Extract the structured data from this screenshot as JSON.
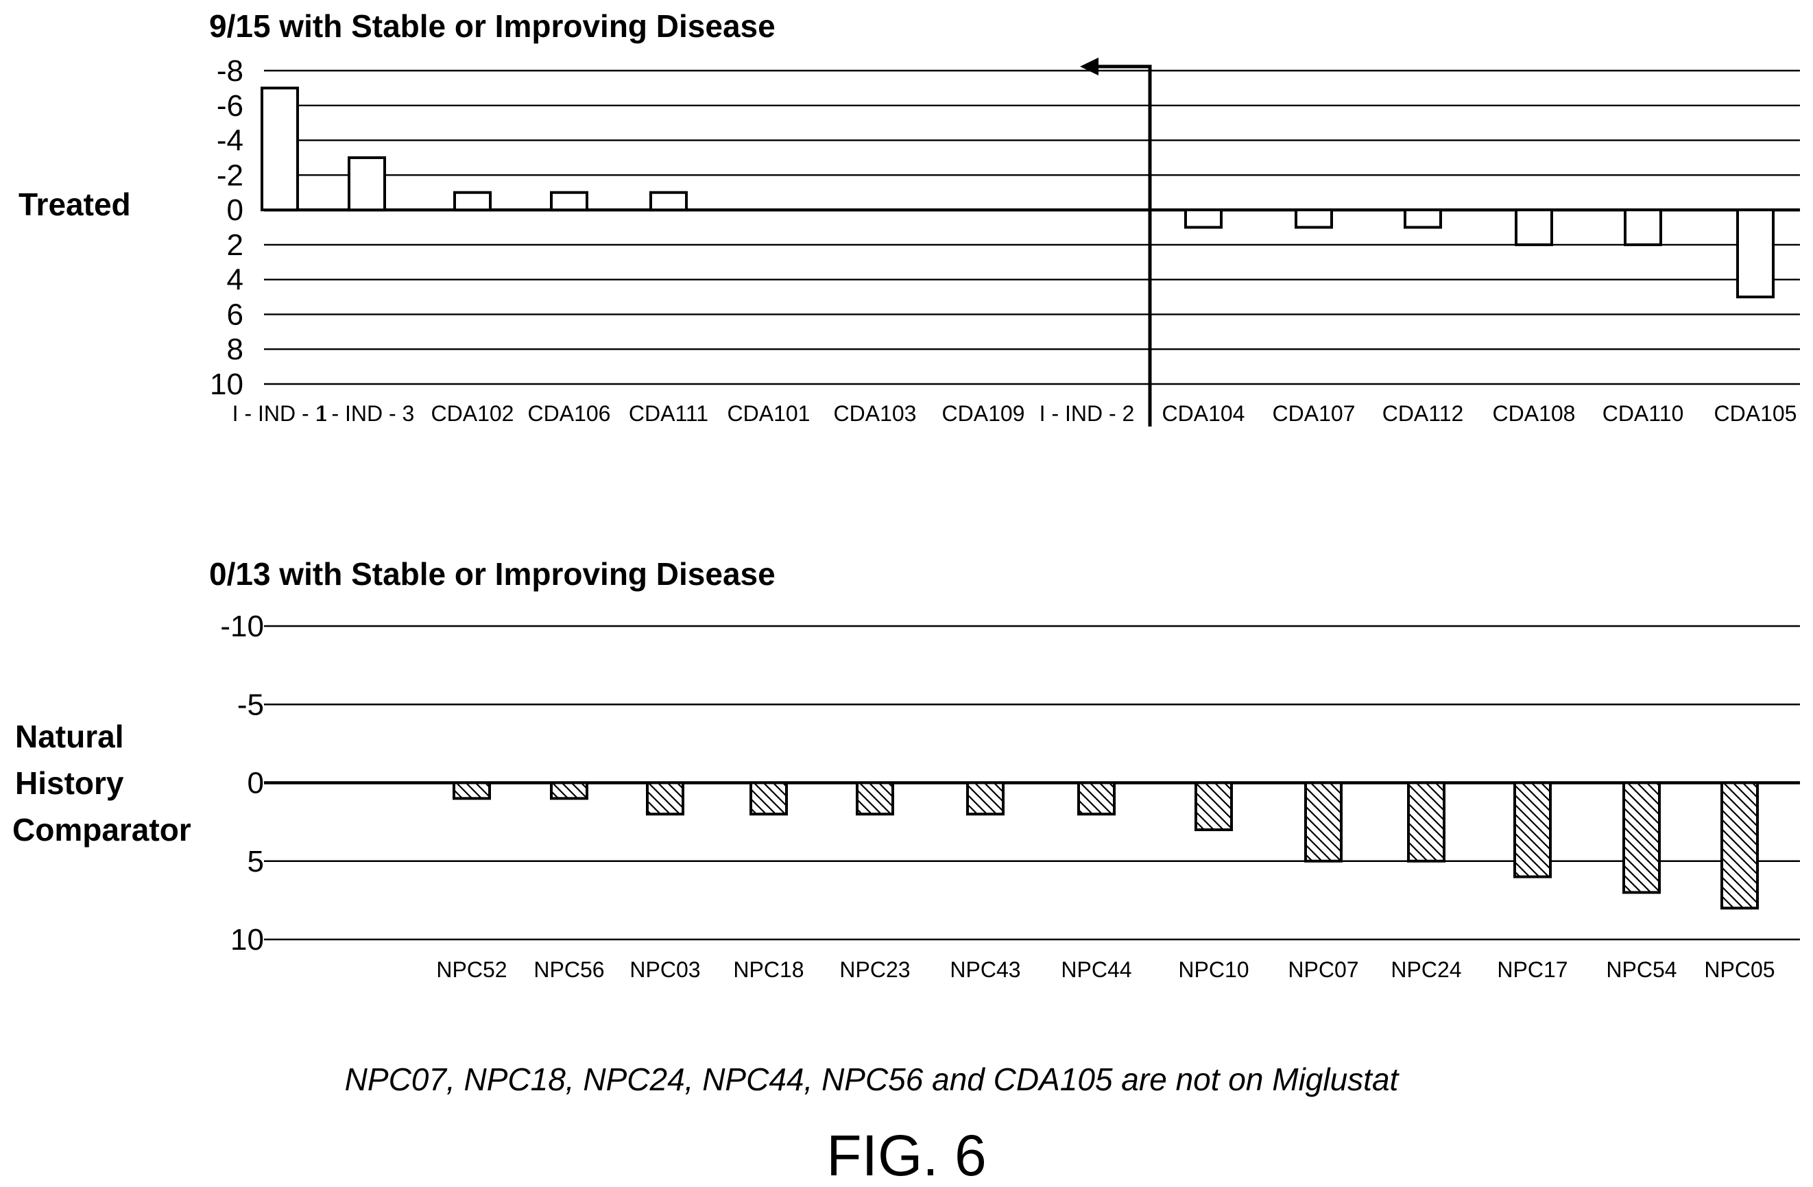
{
  "chart_data": [
    {
      "type": "bar",
      "title": "9/15 with Stable or Improving Disease",
      "side_label": "Treated",
      "categories": [
        "I - IND - 1",
        "I - IND - 3",
        "CDA102",
        "CDA106",
        "CDA111",
        "CDA101",
        "CDA103",
        "CDA109",
        "I - IND - 2",
        "CDA104",
        "CDA107",
        "CDA112",
        "CDA108",
        "CDA110",
        "CDA105"
      ],
      "values": [
        -7,
        -3,
        -1,
        -1,
        -1,
        0,
        0,
        0,
        0,
        1,
        1,
        1,
        2,
        2,
        5
      ],
      "yticks": [
        -8,
        -6,
        -4,
        -2,
        0,
        2,
        4,
        6,
        8,
        10
      ],
      "ylim": [
        -8,
        10
      ],
      "y_inverted": true,
      "grid": true,
      "bar_fill": "#ffffff",
      "annotation": "arrow"
    },
    {
      "type": "bar",
      "title": "0/13 with Stable or Improving Disease",
      "side_label": [
        "Natural",
        "History",
        "Comparator"
      ],
      "categories": [
        "NPC52",
        "NPC56",
        "NPC03",
        "NPC18",
        "NPC23",
        "NPC43",
        "NPC44",
        "NPC10",
        "NPC07",
        "NPC24",
        "NPC17",
        "NPC54",
        "NPC05"
      ],
      "values": [
        1,
        1,
        2,
        2,
        2,
        2,
        2,
        3,
        5,
        5,
        6,
        7,
        8
      ],
      "yticks": [
        -10,
        -5,
        0,
        5,
        10
      ],
      "ylim": [
        -10,
        10
      ],
      "y_inverted": true,
      "grid": true,
      "bar_fill": "hatched"
    }
  ],
  "footnote": "NPC07, NPC18, NPC24, NPC44, NPC56 and CDA105 are not on Miglustat",
  "figure_label": "FIG. 6"
}
